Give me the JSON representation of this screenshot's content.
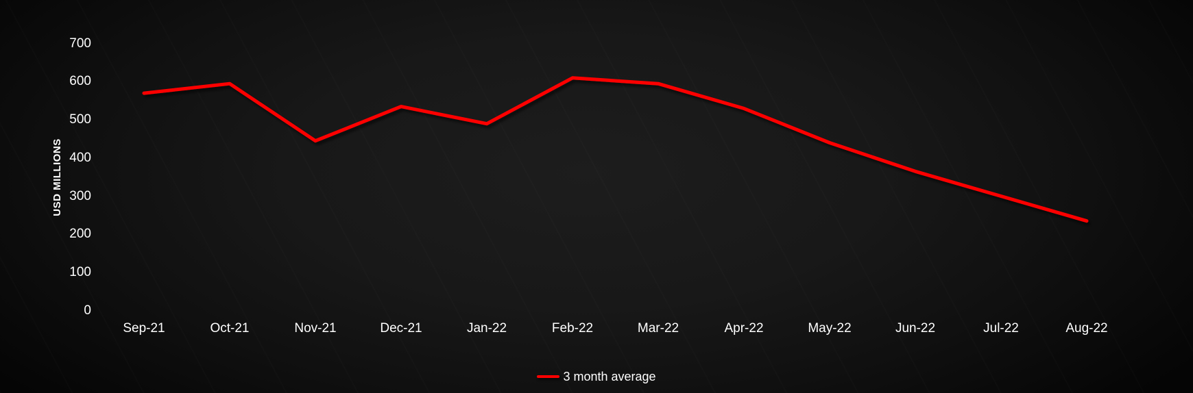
{
  "chart_data": {
    "type": "line",
    "title": "",
    "categories": [
      "Sep-21",
      "Oct-21",
      "Nov-21",
      "Dec-21",
      "Jan-22",
      "Feb-22",
      "Mar-22",
      "Apr-22",
      "May-22",
      "Jun-22",
      "Jul-22",
      "Aug-22"
    ],
    "series": [
      {
        "name": "3 month average",
        "color": "#ff0000",
        "values": [
          570,
          595,
          445,
          535,
          490,
          610,
          595,
          530,
          440,
          365,
          300,
          235
        ]
      }
    ],
    "xlabel": "",
    "ylabel": "USD MILLIONS",
    "ylim": [
      0,
      700
    ],
    "yticks": [
      0,
      100,
      200,
      300,
      400,
      500,
      600,
      700
    ],
    "grid": false,
    "legend_position": "bottom-center",
    "background": "dark"
  },
  "colors": {
    "background_center": "#1d1d1d",
    "background_edge": "#050505",
    "text": "#ffffff",
    "series_line": "#ff0000"
  }
}
